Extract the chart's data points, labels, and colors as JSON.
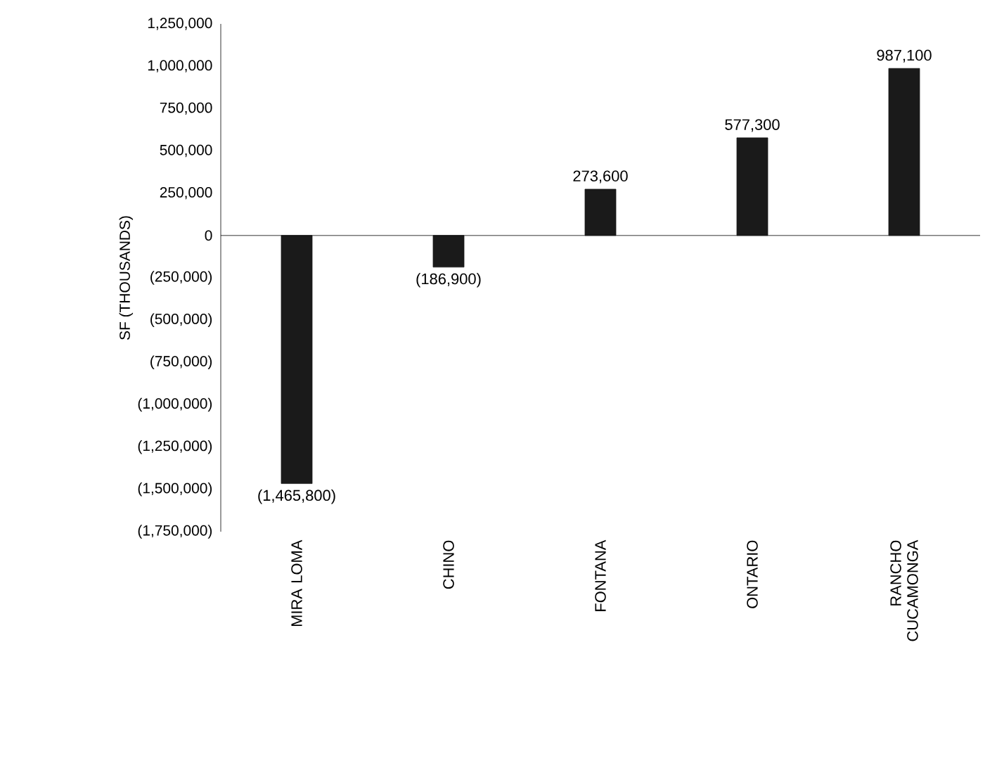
{
  "chart_data": {
    "type": "bar",
    "ylabel": "SF (THOUSANDS)",
    "categories": [
      "MIRA LOMA",
      "CHINO",
      "FONTANA",
      "ONTARIO",
      "RANCHO CUCAMONGA"
    ],
    "values": [
      -1465800,
      -186900,
      273600,
      577300,
      987100
    ],
    "value_labels": [
      "(1,465,800)",
      "(186,900)",
      "273,600",
      "577,300",
      "987,100"
    ],
    "color": "#1a1a1a",
    "ylim": [
      -1750000,
      1250000
    ],
    "yticks": [
      {
        "value": 1250000,
        "label": "1,250,000"
      },
      {
        "value": 1000000,
        "label": "1,000,000"
      },
      {
        "value": 750000,
        "label": "750,000"
      },
      {
        "value": 500000,
        "label": "500,000"
      },
      {
        "value": 250000,
        "label": "250,000"
      },
      0,
      {
        "value": -250000,
        "label": "(250,000)"
      },
      {
        "value": -500000,
        "label": "(500,000)"
      },
      {
        "value": -750000,
        "label": "(750,000)"
      },
      {
        "value": -1000000,
        "label": "(1,000,000)"
      },
      {
        "value": -1250000,
        "label": "(1,250,000)"
      },
      {
        "value": -1500000,
        "label": "(1,500,000)"
      },
      {
        "value": -1750000,
        "label": "(1,750,000)"
      }
    ],
    "relative": false
  }
}
